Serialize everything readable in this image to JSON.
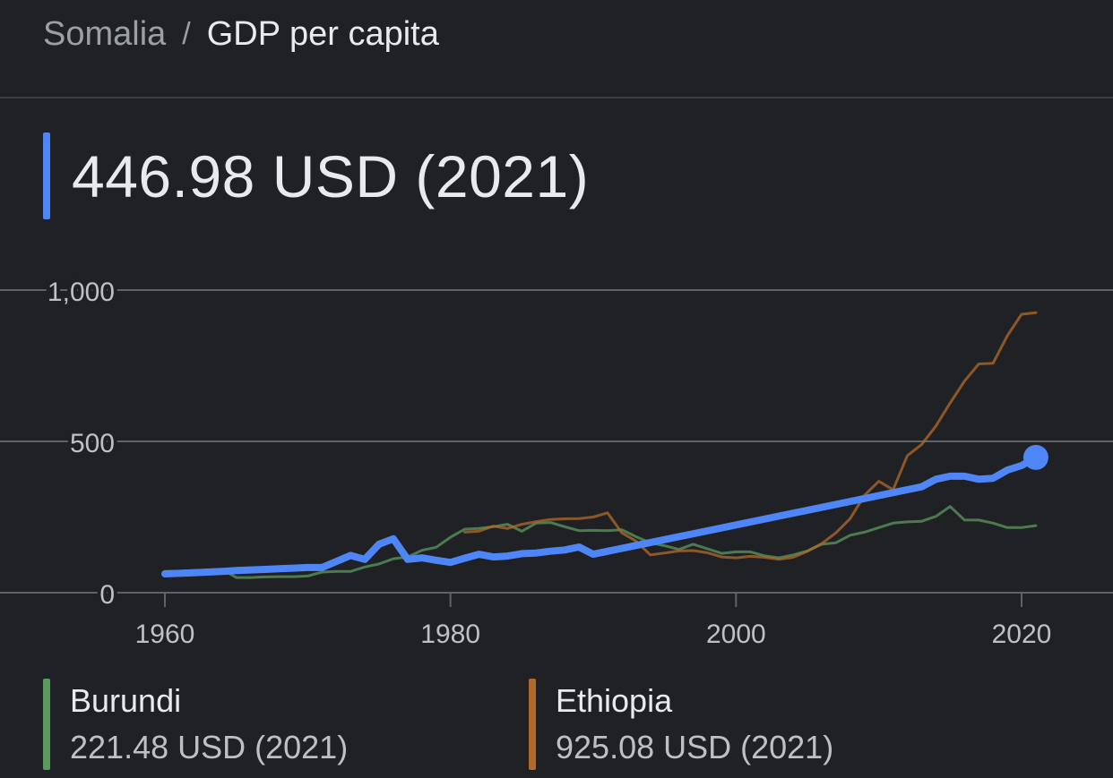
{
  "breadcrumb": {
    "country": "Somalia",
    "separator": "/",
    "current": "GDP per capita"
  },
  "headline": {
    "value": "446.98 USD (2021)",
    "accent_color": "#4f86f7"
  },
  "chart_data": {
    "type": "line",
    "title": "",
    "xlabel": "",
    "ylabel": "",
    "xlim": [
      1960,
      2021
    ],
    "ylim": [
      0,
      1000
    ],
    "x_ticks": [
      1960,
      1980,
      2000,
      2020
    ],
    "x_tick_labels": [
      "1960",
      "1980",
      "2000",
      "2020"
    ],
    "y_ticks": [
      0,
      500,
      1000
    ],
    "y_tick_labels": [
      "0",
      "500",
      "1,000"
    ],
    "grid": true,
    "series": [
      {
        "name": "Somalia",
        "color": "#4f86f7",
        "end_marker": true,
        "x": [
          1960,
          1961,
          1962,
          1963,
          1964,
          1965,
          1966,
          1967,
          1968,
          1969,
          1970,
          1971,
          1972,
          1973,
          1974,
          1975,
          1976,
          1977,
          1978,
          1979,
          1980,
          1981,
          1982,
          1983,
          1984,
          1985,
          1986,
          1987,
          1988,
          1989,
          1990,
          2013,
          2014,
          2015,
          2016,
          2017,
          2018,
          2019,
          2020,
          2021
        ],
        "y": [
          62,
          64,
          66,
          68,
          70,
          73,
          75,
          77,
          79,
          81,
          83,
          83,
          103,
          123,
          110,
          160,
          178,
          110,
          115,
          107,
          100,
          114,
          127,
          118,
          121,
          129,
          131,
          137,
          141,
          151,
          127,
          350,
          375,
          385,
          385,
          375,
          378,
          405,
          420,
          446.98
        ]
      },
      {
        "name": "Burundi",
        "color": "#5b9a5f",
        "x": [
          1960,
          1961,
          1962,
          1963,
          1964,
          1965,
          1966,
          1967,
          1968,
          1969,
          1970,
          1971,
          1972,
          1973,
          1974,
          1975,
          1976,
          1977,
          1978,
          1979,
          1980,
          1981,
          1982,
          1983,
          1984,
          1985,
          1986,
          1987,
          1988,
          1989,
          1990,
          1991,
          1992,
          1993,
          1994,
          1995,
          1996,
          1997,
          1998,
          1999,
          2000,
          2001,
          2002,
          2003,
          2004,
          2005,
          2006,
          2007,
          2008,
          2009,
          2010,
          2011,
          2012,
          2013,
          2014,
          2015,
          2016,
          2017,
          2018,
          2019,
          2020,
          2021
        ],
        "y": [
          70,
          71,
          73,
          75,
          77,
          50,
          50,
          52,
          53,
          53,
          55,
          68,
          70,
          70,
          85,
          95,
          112,
          118,
          140,
          150,
          183,
          210,
          212,
          218,
          226,
          203,
          230,
          232,
          218,
          205,
          206,
          205,
          208,
          185,
          165,
          155,
          143,
          160,
          145,
          130,
          135,
          135,
          122,
          115,
          125,
          138,
          160,
          165,
          190,
          200,
          215,
          230,
          234,
          236,
          252,
          285,
          240,
          240,
          230,
          215,
          215,
          221.48
        ]
      },
      {
        "name": "Ethiopia",
        "color": "#b16a2c",
        "x": [
          1981,
          1982,
          1983,
          1984,
          1985,
          1986,
          1987,
          1988,
          1989,
          1990,
          1991,
          1992,
          1993,
          1994,
          1995,
          1996,
          1997,
          1998,
          1999,
          2000,
          2001,
          2002,
          2003,
          2004,
          2005,
          2006,
          2007,
          2008,
          2009,
          2010,
          2011,
          2012,
          2013,
          2014,
          2015,
          2016,
          2017,
          2018,
          2019,
          2020,
          2021
        ],
        "y": [
          200,
          203,
          220,
          212,
          226,
          235,
          242,
          244,
          245,
          250,
          264,
          198,
          170,
          125,
          131,
          138,
          139,
          132,
          118,
          115,
          120,
          117,
          110,
          117,
          137,
          162,
          198,
          245,
          322,
          368,
          340,
          453,
          490,
          551,
          627,
          699,
          756,
          758,
          849,
          920,
          925.08
        ]
      }
    ]
  },
  "legend": [
    {
      "name": "Burundi",
      "value": "221.48 USD (2021)",
      "color": "#5b9a5f"
    },
    {
      "name": "Ethiopia",
      "value": "925.08 USD (2021)",
      "color": "#b16a2c"
    }
  ]
}
